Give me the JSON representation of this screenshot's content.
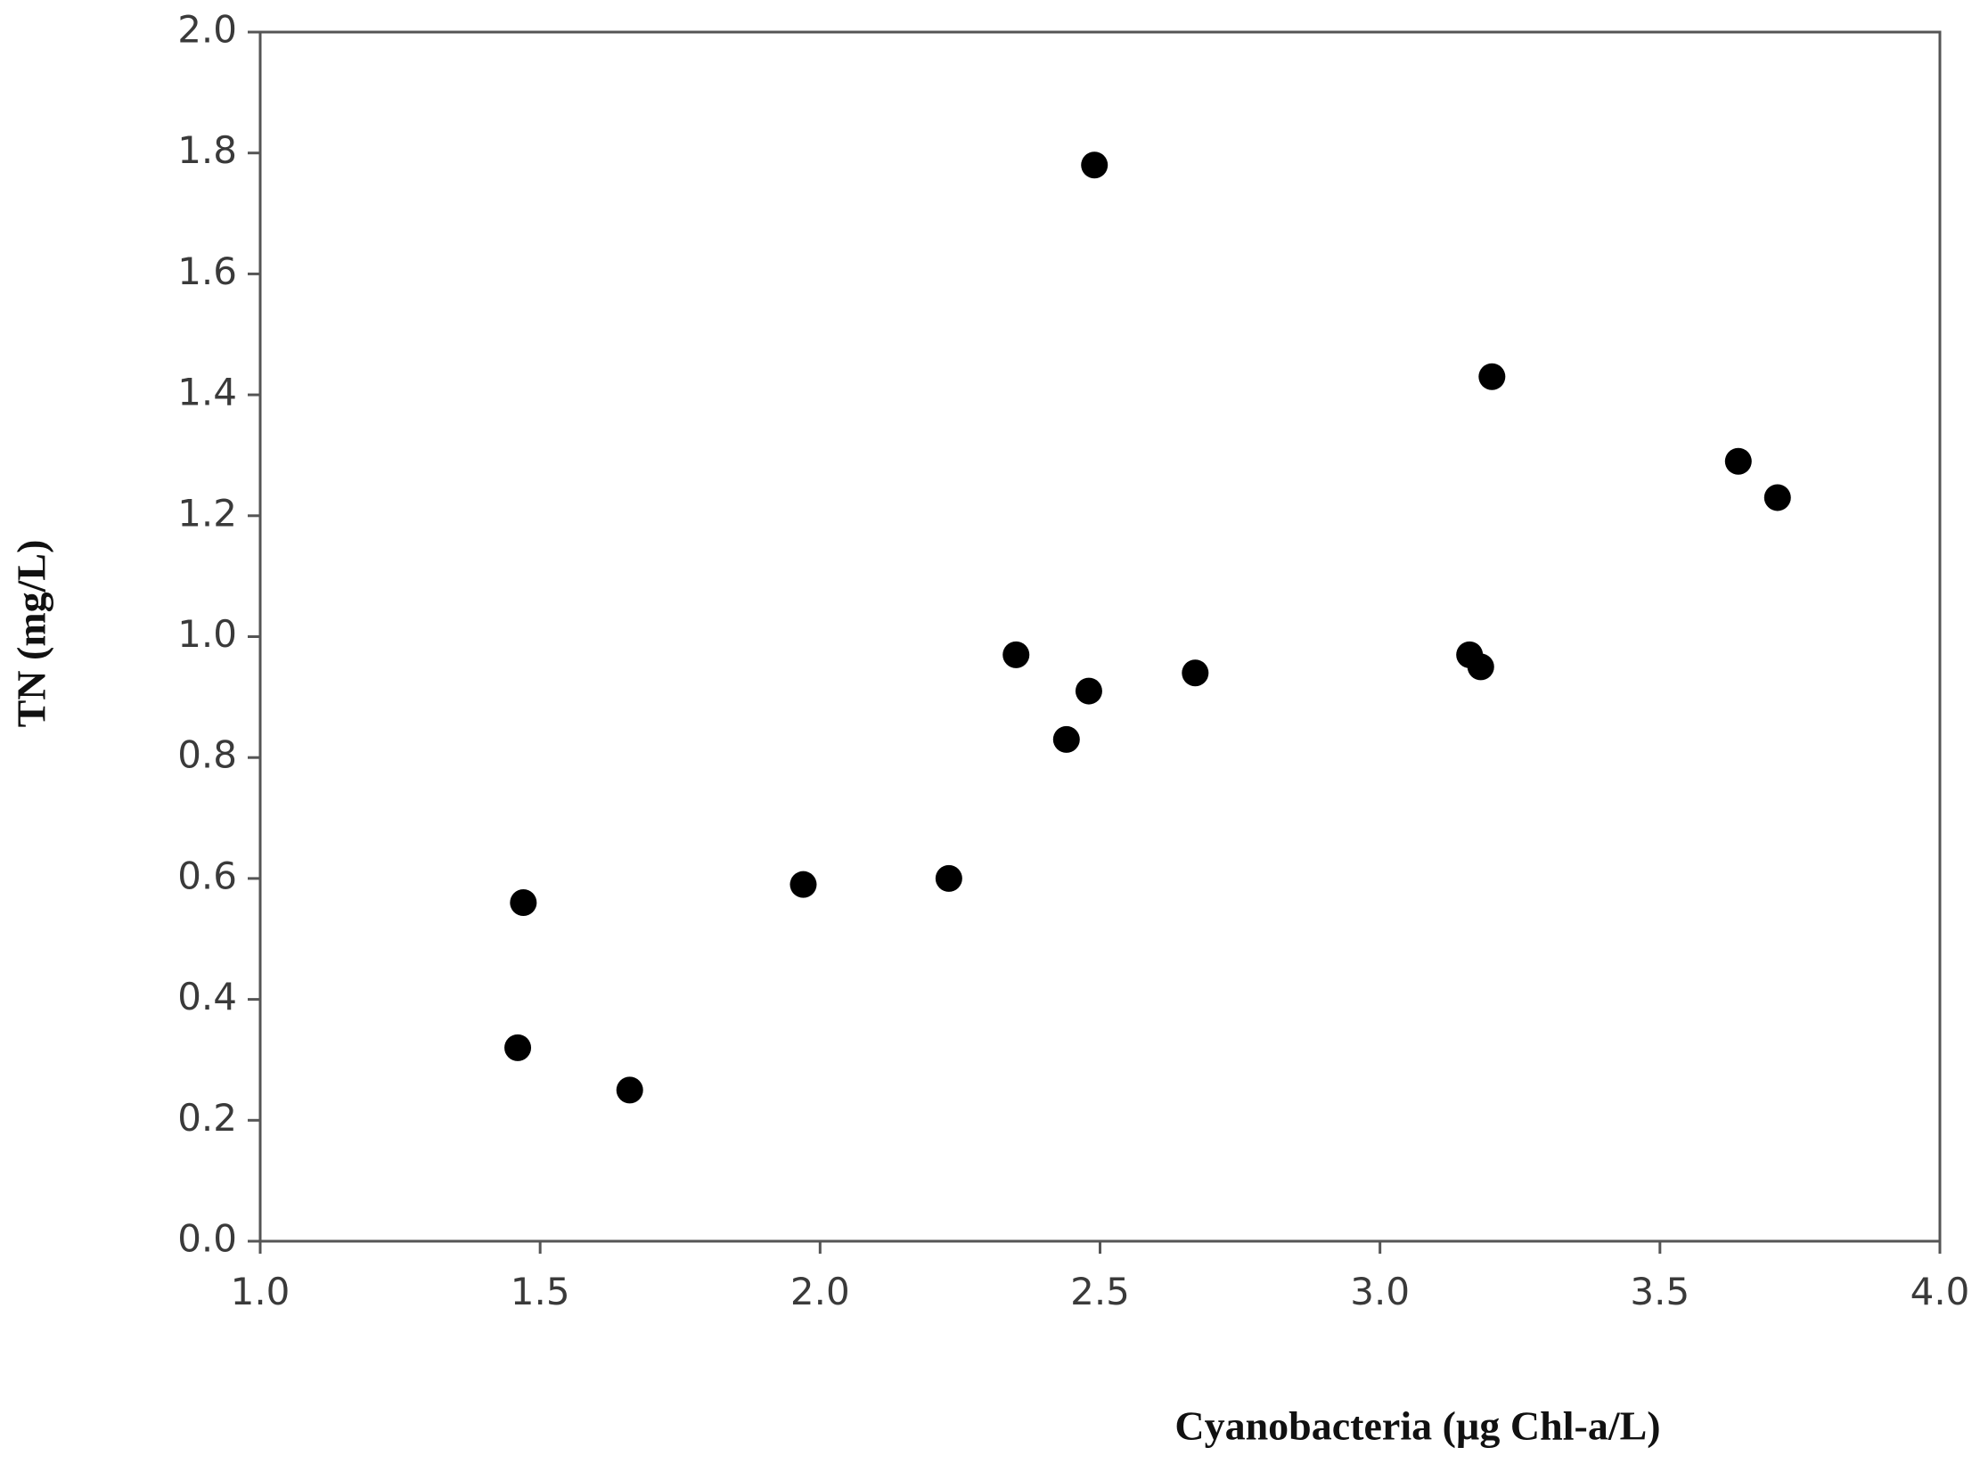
{
  "chart_data": {
    "type": "scatter",
    "x_label": "Cyanobacteria (µg Chl-a/L)",
    "y_label": "TN (mg/L)",
    "x": [
      1.46,
      1.47,
      1.66,
      1.97,
      2.23,
      2.35,
      2.44,
      2.48,
      2.49,
      2.67,
      3.16,
      3.18,
      3.2,
      3.64,
      3.71
    ],
    "values": [
      0.32,
      0.56,
      0.25,
      0.59,
      0.6,
      0.97,
      0.83,
      0.91,
      1.78,
      0.94,
      0.97,
      0.95,
      1.43,
      1.29,
      1.23
    ],
    "color": "#000000",
    "xlim": [
      1.0,
      4.0
    ],
    "xticks": [
      {
        "value": 1.0,
        "label": "1.0"
      },
      1.5,
      {
        "value": 2.0,
        "label": "2.0"
      },
      2.5,
      {
        "value": 3.0,
        "label": "3.0"
      },
      3.5,
      {
        "value": 4.0,
        "label": "4.0"
      }
    ],
    "ylim": [
      0.0,
      2.0
    ],
    "yticks": [
      {
        "value": 0.0,
        "label": "0.0"
      },
      0.2,
      0.4,
      0.6,
      0.8,
      {
        "value": 1.0,
        "label": "1.0"
      },
      1.2,
      1.4,
      1.6,
      1.8,
      {
        "value": 2.0,
        "label": "2.0"
      }
    ],
    "grid": false
  }
}
